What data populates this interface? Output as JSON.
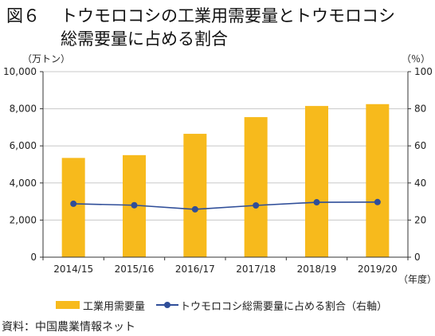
{
  "figure": {
    "number": "図６",
    "title_line1": "トウモロコシの工業用需要量とトウモロコシ",
    "title_line2": "総需要量に占める割合"
  },
  "units": {
    "left": "（万トン）",
    "right": "（％）",
    "x": "（年度）"
  },
  "legend": {
    "bar_label": "工業用需要量",
    "line_label": "トウモロコシ総需要量に占める割合（右軸）"
  },
  "source": "資料：中国農業情報ネット",
  "colors": {
    "bar": "#F7BA1C",
    "line": "#2F4E99",
    "grid": "#C8C8C8"
  },
  "chart_data": {
    "type": "bar",
    "categories": [
      "2014/15",
      "2015/16",
      "2016/17",
      "2017/18",
      "2018/19",
      "2019/20"
    ],
    "series": [
      {
        "name": "工業用需要量",
        "type": "bar",
        "axis": "left",
        "values": [
          5350,
          5500,
          6650,
          7550,
          8150,
          8250
        ]
      },
      {
        "name": "トウモロコシ総需要量に占める割合（右軸）",
        "type": "line",
        "axis": "right",
        "values": [
          28.8,
          28.0,
          25.8,
          27.9,
          29.6,
          29.7
        ]
      }
    ],
    "y_left": {
      "min": 0,
      "max": 10000,
      "ticks": [
        0,
        2000,
        4000,
        6000,
        8000,
        10000
      ],
      "tick_labels": [
        "0",
        "2,000",
        "4,000",
        "6,000",
        "8,000",
        "10,000"
      ]
    },
    "y_right": {
      "min": 0,
      "max": 100,
      "ticks": [
        0,
        20,
        40,
        60,
        80,
        100
      ],
      "tick_labels": [
        "0",
        "20",
        "40",
        "60",
        "80",
        "100"
      ]
    },
    "grid": true,
    "legend_position": "bottom"
  }
}
